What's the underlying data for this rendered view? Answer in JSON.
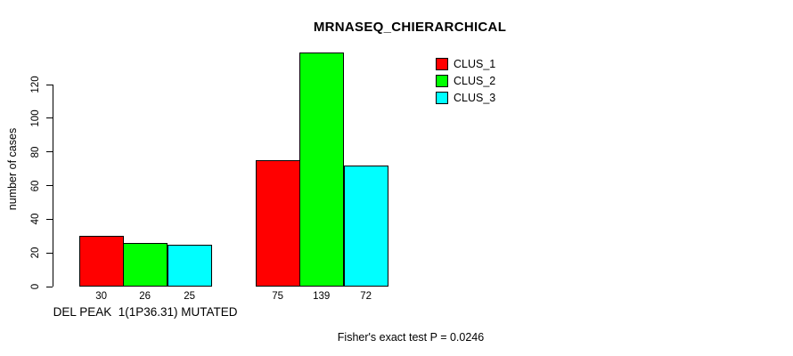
{
  "title": "MRNASEQ_CHIERARCHICAL",
  "footer": "Fisher's exact test P = 0.0246",
  "axes": {
    "ylabel": "number of cases"
  },
  "legend": {
    "items": [
      {
        "label": "CLUS_1",
        "color": "#ff0000"
      },
      {
        "label": "CLUS_2",
        "color": "#00ff00"
      },
      {
        "label": "CLUS_3",
        "color": "#00ffff"
      }
    ]
  },
  "chart_data": {
    "type": "bar",
    "title": "MRNASEQ_CHIERARCHICAL",
    "xlabel": "",
    "ylabel": "number of cases",
    "categories": [
      "DEL PEAK  1(1P36.31) MUTATED",
      ""
    ],
    "series": [
      {
        "name": "CLUS_1",
        "color": "#ff0000",
        "values": [
          30,
          75
        ]
      },
      {
        "name": "CLUS_2",
        "color": "#00ff00",
        "values": [
          26,
          139
        ]
      },
      {
        "name": "CLUS_3",
        "color": "#00ffff",
        "values": [
          25,
          72
        ]
      }
    ],
    "bar_value_labels": [
      [
        30,
        26,
        25
      ],
      [
        75,
        139,
        72
      ]
    ],
    "yticks": [
      0,
      20,
      40,
      60,
      80,
      100,
      120
    ],
    "ylim": [
      0,
      120
    ],
    "grid": false,
    "legend_position": "top-right",
    "annotation": "Fisher's exact test P = 0.0246"
  }
}
